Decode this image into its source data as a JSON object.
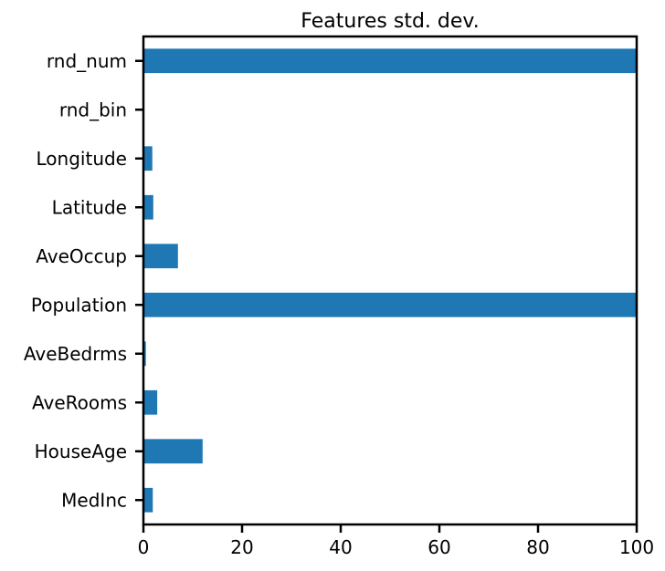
{
  "chart_data": {
    "type": "bar",
    "orientation": "horizontal",
    "title": "Features std. dev.",
    "xlabel": "",
    "ylabel": "",
    "xlim": [
      0,
      100
    ],
    "xticks": [
      0,
      20,
      40,
      60,
      80,
      100
    ],
    "categories": [
      "MedInc",
      "HouseAge",
      "AveRooms",
      "AveBedrms",
      "Population",
      "AveOccup",
      "Latitude",
      "Longitude",
      "rnd_bin",
      "rnd_num"
    ],
    "values": [
      1.9,
      12.0,
      2.8,
      0.5,
      100,
      7.0,
      2.0,
      1.8,
      0.0,
      100
    ],
    "bar_color": "#1f77b4",
    "grid": false,
    "legend": false
  }
}
